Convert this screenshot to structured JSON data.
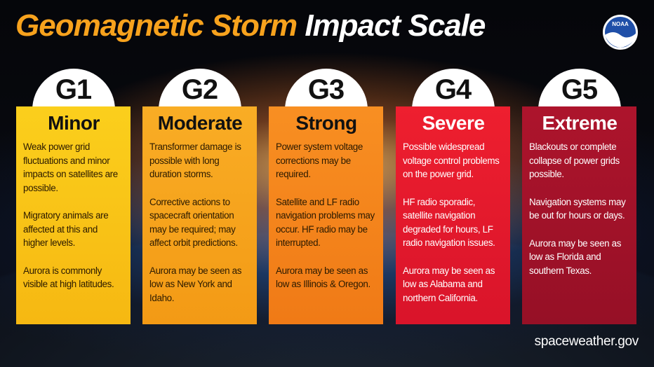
{
  "header": {
    "title_part1": "Geomagnetic Storm",
    "title_part2": "Impact Scale",
    "logo_text": "NOAA"
  },
  "cards": [
    {
      "level": "G1",
      "name": "Minor",
      "paragraphs": [
        "Weak power grid fluctuations and minor impacts on satellites are possible.",
        "Migratory animals are affected at this and higher levels.",
        "Aurora is commonly visible at high latitudes."
      ]
    },
    {
      "level": "G2",
      "name": "Moderate",
      "paragraphs": [
        "Transformer damage is possible with long duration storms.",
        "Corrective actions to spacecraft orientation may be required; may affect orbit predictions.",
        "Aurora may be seen as low as New York and Idaho."
      ]
    },
    {
      "level": "G3",
      "name": "Strong",
      "paragraphs": [
        "Power system voltage corrections may be required.",
        "Satellite and LF radio navigation problems may occur. HF radio may be interrupted.",
        "Aurora may be seen as low as Illinois & Oregon."
      ]
    },
    {
      "level": "G4",
      "name": "Severe",
      "paragraphs": [
        "Possible widespread voltage control problems on the power grid.",
        "HF radio sporadic, satellite navigation degraded for hours, LF radio navigation issues.",
        "Aurora may be seen as low as Alabama and northern California."
      ]
    },
    {
      "level": "G5",
      "name": "Extreme",
      "paragraphs": [
        "Blackouts or complete collapse of power grids possible.",
        "Navigation systems may be out for hours or days.",
        "Aurora may be seen as low as Florida and southern Texas."
      ]
    }
  ],
  "footer": "spaceweather.gov"
}
